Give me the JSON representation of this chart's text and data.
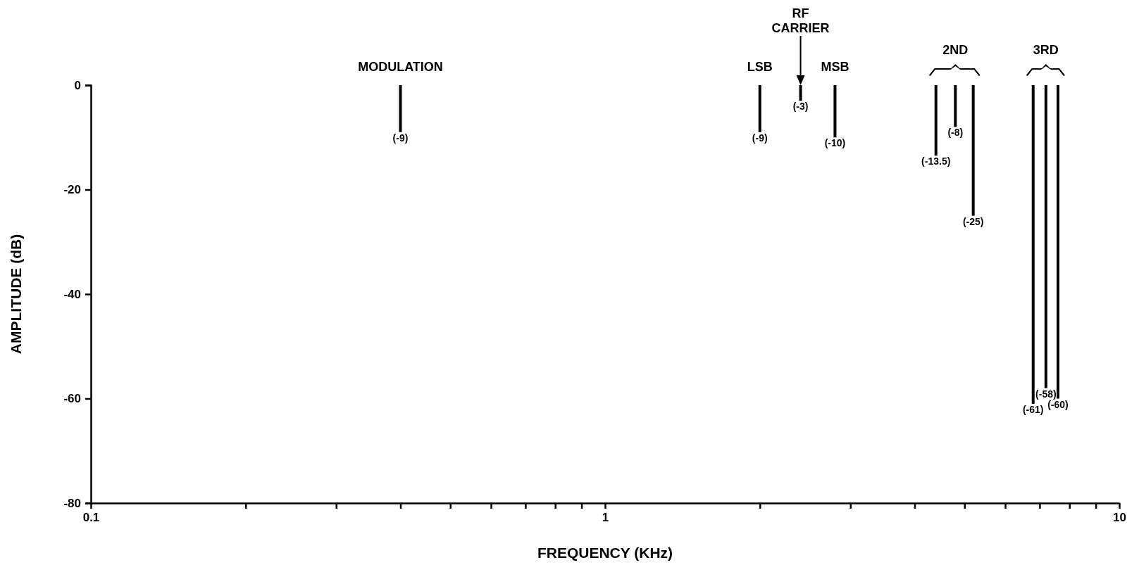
{
  "chart_data": {
    "type": "bar",
    "xlabel": "FREQUENCY (KHz)",
    "ylabel": "AMPLITUDE (dB)",
    "log": "x",
    "x": [
      0.4,
      2.0,
      2.4,
      2.8,
      4.4,
      4.8,
      5.2,
      6.8,
      7.2,
      7.6
    ],
    "values": [
      -9,
      -9,
      -3,
      -10,
      -13.5,
      -8,
      -25,
      -61,
      -58,
      -60
    ],
    "value_labels": [
      "(-9)",
      "(-9)",
      "(-3)",
      "(-10)",
      "(-13.5)",
      "(-8)",
      "(-25)",
      "(-61)",
      "(-58)",
      "(-60)"
    ],
    "color": "#000000",
    "xlim": [
      0.1,
      10
    ],
    "xticks": [
      {
        "value": 0.1,
        "label": "0.1"
      },
      {
        "value": 0.2,
        "label": null
      },
      {
        "value": 0.3,
        "label": null
      },
      {
        "value": 0.4,
        "label": null
      },
      {
        "value": 0.5,
        "label": null
      },
      {
        "value": 0.6,
        "label": null
      },
      {
        "value": 0.7,
        "label": null
      },
      {
        "value": 0.8,
        "label": null
      },
      {
        "value": 0.9,
        "label": null
      },
      1,
      {
        "value": 2,
        "label": null
      },
      {
        "value": 3,
        "label": null
      },
      {
        "value": 4,
        "label": null
      },
      {
        "value": 5,
        "label": null
      },
      {
        "value": 6,
        "label": null
      },
      {
        "value": 7,
        "label": null
      },
      {
        "value": 8,
        "label": null
      },
      {
        "value": 9,
        "label": null
      },
      10
    ],
    "ylim": [
      -80,
      0
    ],
    "yticks": [
      -80,
      -60,
      -40,
      -20,
      0
    ],
    "annotations": [
      {
        "text": "MODULATION",
        "x": 0.4,
        "y": 0
      },
      {
        "text": "LSB",
        "x": 2.0,
        "y": 0
      },
      "RF CARRIER",
      {
        "text": "MSB",
        "x": 2.8,
        "y": 0
      },
      {
        "text": "2ND",
        "x": 4.8,
        "y": 0
      },
      {
        "text": "3RD",
        "x": 7.2,
        "y": 0
      }
    ]
  }
}
